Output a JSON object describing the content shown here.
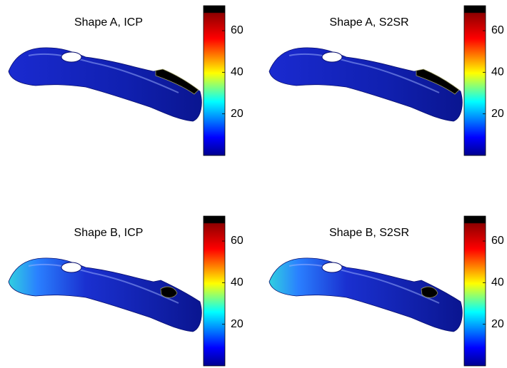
{
  "chart_data": [
    {
      "type": "surface",
      "title": "Shape A, ICP",
      "clim": [
        0,
        72
      ],
      "cticks": [
        20,
        40,
        60
      ],
      "colormap": "jet"
    },
    {
      "type": "surface",
      "title": "Shape A, S2SR",
      "clim": [
        0,
        72
      ],
      "cticks": [
        20,
        40,
        60
      ],
      "colormap": "jet"
    },
    {
      "type": "surface",
      "title": "Shape B, ICP",
      "clim": [
        0,
        72
      ],
      "cticks": [
        20,
        40,
        60
      ],
      "colormap": "jet"
    },
    {
      "type": "surface",
      "title": "Shape B, S2SR",
      "clim": [
        0,
        72
      ],
      "cticks": [
        20,
        40,
        60
      ],
      "colormap": "jet"
    }
  ]
}
